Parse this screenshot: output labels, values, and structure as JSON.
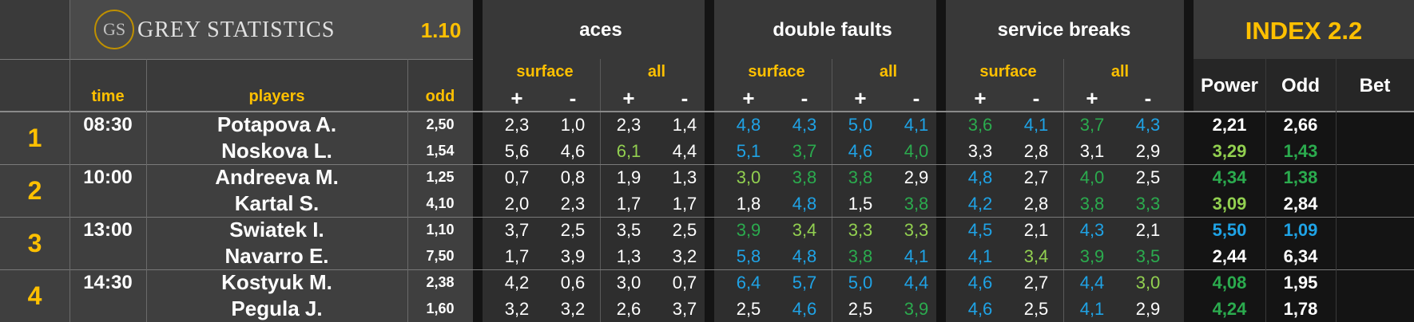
{
  "brand": {
    "logo": "GS",
    "name": "GREY STATISTICS",
    "version": "1.10",
    "index": "INDEX 2.2"
  },
  "headers": {
    "time": "time",
    "players": "players",
    "odd": "odd",
    "aces": "aces",
    "double_faults": "double faults",
    "service_breaks": "service breaks",
    "surface": "surface",
    "all": "all",
    "plus": "+",
    "minus": "-",
    "power": "Power",
    "odd2": "Odd",
    "bet": "Bet"
  },
  "colors": {
    "white": "#ffffff",
    "blue": "#1fa3e6",
    "green": "#2bab4e",
    "lightgreen": "#92d050",
    "gold": "#ffc000"
  },
  "matches": [
    {
      "num": "1",
      "time": "08:30",
      "players": [
        {
          "name": "Potapova A.",
          "odd": "2,50",
          "aces": [
            {
              "v": "2,3",
              "c": "w"
            },
            {
              "v": "1,0",
              "c": "w"
            },
            {
              "v": "2,3",
              "c": "w"
            },
            {
              "v": "1,4",
              "c": "w"
            }
          ],
          "df": [
            {
              "v": "4,8",
              "c": "b"
            },
            {
              "v": "4,3",
              "c": "b"
            },
            {
              "v": "5,0",
              "c": "b"
            },
            {
              "v": "4,1",
              "c": "b"
            }
          ],
          "sb": [
            {
              "v": "3,6",
              "c": "g"
            },
            {
              "v": "4,1",
              "c": "b"
            },
            {
              "v": "3,7",
              "c": "g"
            },
            {
              "v": "4,3",
              "c": "b"
            }
          ],
          "power": {
            "v": "2,21",
            "c": "w"
          },
          "odd2": {
            "v": "2,66",
            "c": "w"
          }
        },
        {
          "name": "Noskova L.",
          "odd": "1,54",
          "aces": [
            {
              "v": "5,6",
              "c": "w"
            },
            {
              "v": "4,6",
              "c": "w"
            },
            {
              "v": "6,1",
              "c": "lg"
            },
            {
              "v": "4,4",
              "c": "w"
            }
          ],
          "df": [
            {
              "v": "5,1",
              "c": "b"
            },
            {
              "v": "3,7",
              "c": "g"
            },
            {
              "v": "4,6",
              "c": "b"
            },
            {
              "v": "4,0",
              "c": "g"
            }
          ],
          "sb": [
            {
              "v": "3,3",
              "c": "w"
            },
            {
              "v": "2,8",
              "c": "w"
            },
            {
              "v": "3,1",
              "c": "w"
            },
            {
              "v": "2,9",
              "c": "w"
            }
          ],
          "power": {
            "v": "3,29",
            "c": "lg"
          },
          "odd2": {
            "v": "1,43",
            "c": "g"
          }
        }
      ]
    },
    {
      "num": "2",
      "time": "10:00",
      "players": [
        {
          "name": "Andreeva M.",
          "odd": "1,25",
          "aces": [
            {
              "v": "0,7",
              "c": "w"
            },
            {
              "v": "0,8",
              "c": "w"
            },
            {
              "v": "1,9",
              "c": "w"
            },
            {
              "v": "1,3",
              "c": "w"
            }
          ],
          "df": [
            {
              "v": "3,0",
              "c": "lg"
            },
            {
              "v": "3,8",
              "c": "g"
            },
            {
              "v": "3,8",
              "c": "g"
            },
            {
              "v": "2,9",
              "c": "w"
            }
          ],
          "sb": [
            {
              "v": "4,8",
              "c": "b"
            },
            {
              "v": "2,7",
              "c": "w"
            },
            {
              "v": "4,0",
              "c": "g"
            },
            {
              "v": "2,5",
              "c": "w"
            }
          ],
          "power": {
            "v": "4,34",
            "c": "g"
          },
          "odd2": {
            "v": "1,38",
            "c": "g"
          }
        },
        {
          "name": "Kartal S.",
          "odd": "4,10",
          "aces": [
            {
              "v": "2,0",
              "c": "w"
            },
            {
              "v": "2,3",
              "c": "w"
            },
            {
              "v": "1,7",
              "c": "w"
            },
            {
              "v": "1,7",
              "c": "w"
            }
          ],
          "df": [
            {
              "v": "1,8",
              "c": "w"
            },
            {
              "v": "4,8",
              "c": "b"
            },
            {
              "v": "1,5",
              "c": "w"
            },
            {
              "v": "3,8",
              "c": "g"
            }
          ],
          "sb": [
            {
              "v": "4,2",
              "c": "b"
            },
            {
              "v": "2,8",
              "c": "w"
            },
            {
              "v": "3,8",
              "c": "g"
            },
            {
              "v": "3,3",
              "c": "g"
            }
          ],
          "power": {
            "v": "3,09",
            "c": "lg"
          },
          "odd2": {
            "v": "2,84",
            "c": "w"
          }
        }
      ]
    },
    {
      "num": "3",
      "time": "13:00",
      "players": [
        {
          "name": "Swiatek I.",
          "odd": "1,10",
          "aces": [
            {
              "v": "3,7",
              "c": "w"
            },
            {
              "v": "2,5",
              "c": "w"
            },
            {
              "v": "3,5",
              "c": "w"
            },
            {
              "v": "2,5",
              "c": "w"
            }
          ],
          "df": [
            {
              "v": "3,9",
              "c": "g"
            },
            {
              "v": "3,4",
              "c": "lg"
            },
            {
              "v": "3,3",
              "c": "lg"
            },
            {
              "v": "3,3",
              "c": "lg"
            }
          ],
          "sb": [
            {
              "v": "4,5",
              "c": "b"
            },
            {
              "v": "2,1",
              "c": "w"
            },
            {
              "v": "4,3",
              "c": "b"
            },
            {
              "v": "2,1",
              "c": "w"
            }
          ],
          "power": {
            "v": "5,50",
            "c": "b"
          },
          "odd2": {
            "v": "1,09",
            "c": "b"
          }
        },
        {
          "name": "Navarro E.",
          "odd": "7,50",
          "aces": [
            {
              "v": "1,7",
              "c": "w"
            },
            {
              "v": "3,9",
              "c": "w"
            },
            {
              "v": "1,3",
              "c": "w"
            },
            {
              "v": "3,2",
              "c": "w"
            }
          ],
          "df": [
            {
              "v": "5,8",
              "c": "b"
            },
            {
              "v": "4,8",
              "c": "b"
            },
            {
              "v": "3,8",
              "c": "g"
            },
            {
              "v": "4,1",
              "c": "b"
            }
          ],
          "sb": [
            {
              "v": "4,1",
              "c": "b"
            },
            {
              "v": "3,4",
              "c": "lg"
            },
            {
              "v": "3,9",
              "c": "g"
            },
            {
              "v": "3,5",
              "c": "g"
            }
          ],
          "power": {
            "v": "2,44",
            "c": "w"
          },
          "odd2": {
            "v": "6,34",
            "c": "w"
          }
        }
      ]
    },
    {
      "num": "4",
      "time": "14:30",
      "players": [
        {
          "name": "Kostyuk M.",
          "odd": "2,38",
          "aces": [
            {
              "v": "4,2",
              "c": "w"
            },
            {
              "v": "0,6",
              "c": "w"
            },
            {
              "v": "3,0",
              "c": "w"
            },
            {
              "v": "0,7",
              "c": "w"
            }
          ],
          "df": [
            {
              "v": "6,4",
              "c": "b"
            },
            {
              "v": "5,7",
              "c": "b"
            },
            {
              "v": "5,0",
              "c": "b"
            },
            {
              "v": "4,4",
              "c": "b"
            }
          ],
          "sb": [
            {
              "v": "4,6",
              "c": "b"
            },
            {
              "v": "2,7",
              "c": "w"
            },
            {
              "v": "4,4",
              "c": "b"
            },
            {
              "v": "3,0",
              "c": "lg"
            }
          ],
          "power": {
            "v": "4,08",
            "c": "g"
          },
          "odd2": {
            "v": "1,95",
            "c": "w"
          }
        },
        {
          "name": "Pegula J.",
          "odd": "1,60",
          "aces": [
            {
              "v": "3,2",
              "c": "w"
            },
            {
              "v": "3,2",
              "c": "w"
            },
            {
              "v": "2,6",
              "c": "w"
            },
            {
              "v": "3,7",
              "c": "w"
            }
          ],
          "df": [
            {
              "v": "2,5",
              "c": "w"
            },
            {
              "v": "4,6",
              "c": "b"
            },
            {
              "v": "2,5",
              "c": "w"
            },
            {
              "v": "3,9",
              "c": "g"
            }
          ],
          "sb": [
            {
              "v": "4,6",
              "c": "b"
            },
            {
              "v": "2,5",
              "c": "w"
            },
            {
              "v": "4,1",
              "c": "b"
            },
            {
              "v": "2,9",
              "c": "w"
            }
          ],
          "power": {
            "v": "4,24",
            "c": "g"
          },
          "odd2": {
            "v": "1,78",
            "c": "w"
          }
        }
      ]
    }
  ]
}
